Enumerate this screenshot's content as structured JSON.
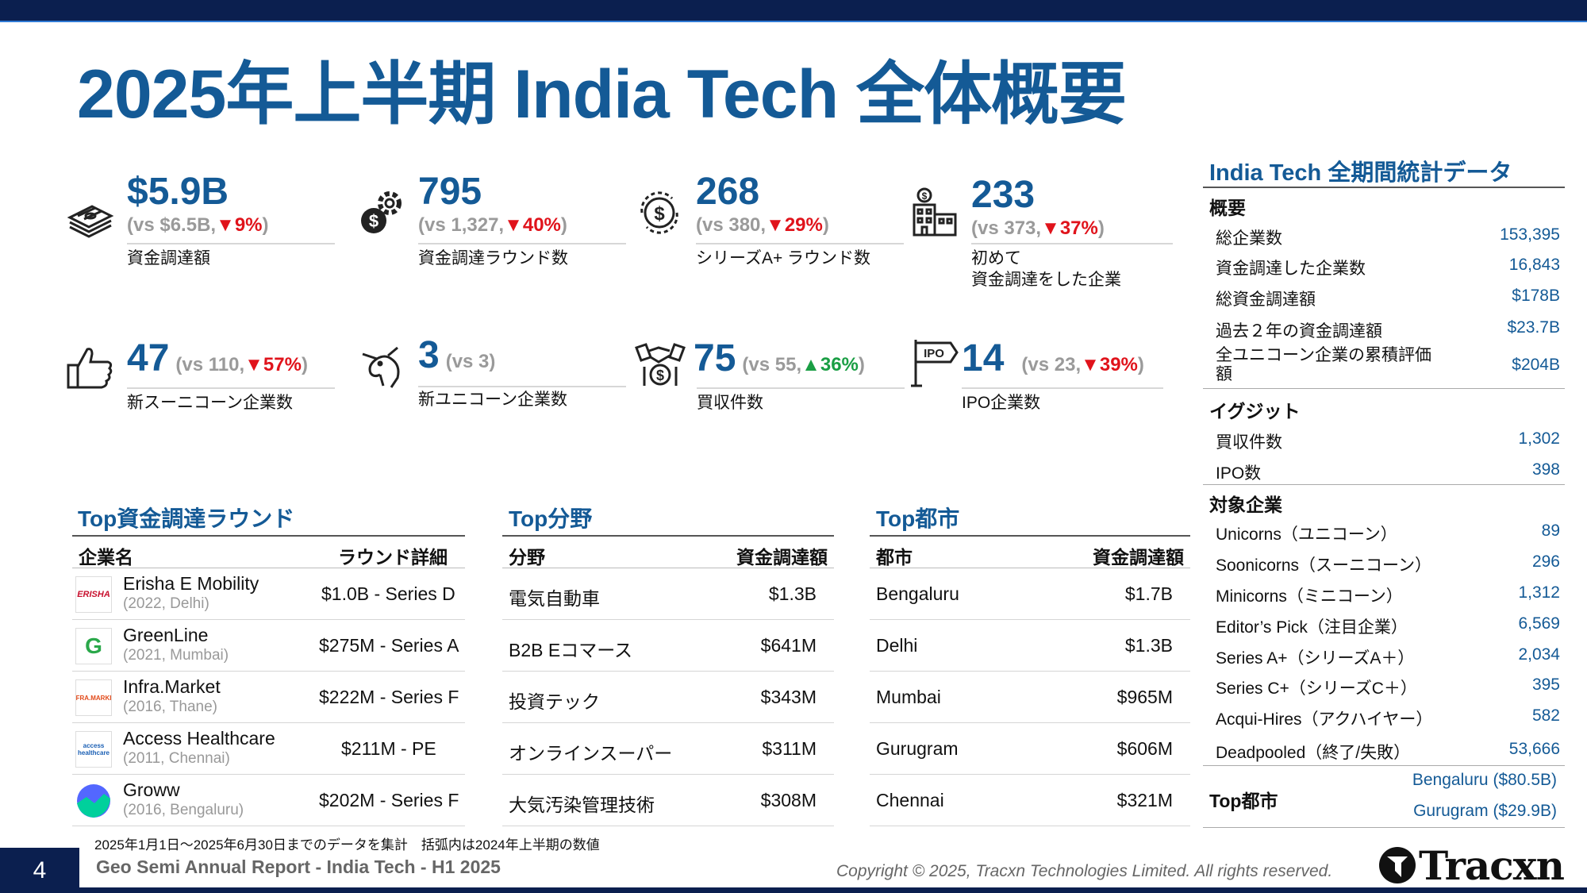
{
  "title": "2025年上半期 India Tech 全体概要",
  "kpis": [
    {
      "value": "$5.9B",
      "vs": "(vs $6.5B,",
      "change": "▼9%",
      "close": ")",
      "direction": "down",
      "label1": "資金調達額",
      "label2": "",
      "icon": "money-stack-icon"
    },
    {
      "value": "795",
      "vs": "(vs 1,327,",
      "change": "▼40%",
      "close": ")",
      "direction": "down",
      "label1": "資金調達ラウンド数",
      "label2": "",
      "icon": "gear-dollar-icon"
    },
    {
      "value": "268",
      "vs": "(vs 380,",
      "change": "▼29%",
      "close": ")",
      "direction": "down",
      "label1": "シリーズA+ ラウンド数",
      "label2": "",
      "icon": "dollar-cycle-icon"
    },
    {
      "value": "233",
      "vs": "(vs 373,",
      "change": "▼37%",
      "close": ")",
      "direction": "down",
      "label1": "初めて",
      "label2": "資金調達をした企業",
      "icon": "building-dollar-icon"
    },
    {
      "value": "47",
      "vs": "(vs 110,",
      "change": "▼57%",
      "close": ")",
      "direction": "down",
      "label1": "新スーニコーン企業数",
      "label2": "",
      "icon": "thumbs-up-icon"
    },
    {
      "value": "3",
      "vs": "(vs 3)",
      "change": "",
      "close": "",
      "direction": "none",
      "label1": "新ユニコーン企業数",
      "label2": "",
      "icon": "unicorn-icon"
    },
    {
      "value": "75",
      "vs": "(vs 55,",
      "change": "▲36%",
      "close": ")",
      "direction": "up",
      "label1": "買収件数",
      "label2": "",
      "icon": "handshake-dollar-icon"
    },
    {
      "value": "14",
      "vs": "(vs 23,",
      "change": "▼39%",
      "close": ")",
      "direction": "down",
      "label1": "IPO企業数",
      "label2": "",
      "icon": "ipo-sign-icon"
    }
  ],
  "top_rounds": {
    "title": "Top資金調達ラウンド",
    "headers": [
      "企業名",
      "ラウンド詳細"
    ],
    "rows": [
      {
        "name": "Erisha E Mobility",
        "sub": "(2022, Delhi)",
        "round": "$1.0B - Series D",
        "logo": "ERISHA"
      },
      {
        "name": "GreenLine",
        "sub": "(2021, Mumbai)",
        "round": "$275M - Series A",
        "logo": "G"
      },
      {
        "name": "Infra.Market",
        "sub": "(2016, Thane)",
        "round": "$222M - Series F",
        "logo": "INFRA.MARKET"
      },
      {
        "name": "Access Healthcare",
        "sub": "(2011, Chennai)",
        "round": "$211M - PE",
        "logo": "access healthcare"
      },
      {
        "name": "Groww",
        "sub": "(2016, Bengaluru)",
        "round": "$202M - Series F",
        "logo": ""
      }
    ]
  },
  "top_sectors": {
    "title": "Top分野",
    "headers": [
      "分野",
      "資金調達額"
    ],
    "rows": [
      {
        "name": "電気自動車",
        "value": "$1.3B"
      },
      {
        "name": "B2B Eコマース",
        "value": "$641M"
      },
      {
        "name": "投資テック",
        "value": "$343M"
      },
      {
        "name": "オンラインスーパー",
        "value": "$311M"
      },
      {
        "name": "大気汚染管理技術",
        "value": "$308M"
      }
    ]
  },
  "top_cities": {
    "title": "Top都市",
    "headers": [
      "都市",
      "資金調達額"
    ],
    "rows": [
      {
        "name": "Bengaluru",
        "value": "$1.7B"
      },
      {
        "name": "Delhi",
        "value": "$1.3B"
      },
      {
        "name": "Mumbai",
        "value": "$965M"
      },
      {
        "name": "Gurugram",
        "value": "$606M"
      },
      {
        "name": "Chennai",
        "value": "$321M"
      }
    ]
  },
  "stats": {
    "title": "India Tech 全期間統計データ",
    "overview_label": "概要",
    "overview": [
      {
        "k": "総企業数",
        "v": "153,395"
      },
      {
        "k": "資金調達した企業数",
        "v": "16,843"
      },
      {
        "k": "総資金調達額",
        "v": "$178B"
      },
      {
        "k": "過去２年の資金調達額",
        "v": "$23.7B"
      },
      {
        "k": "全ユニコーン企業の累積評価",
        "k2": "額",
        "v": "$204B"
      }
    ],
    "exit_label": "イグジット",
    "exits": [
      {
        "k": "買収件数",
        "v": "1,302"
      },
      {
        "k": "IPO数",
        "v": "398"
      }
    ],
    "companies_label": "対象企業",
    "companies": [
      {
        "k": "Unicorns（ユニコーン）",
        "v": "89"
      },
      {
        "k": "Soonicorns（スーニコーン）",
        "v": "296"
      },
      {
        "k": "Minicorns（ミニコーン）",
        "v": "1,312"
      },
      {
        "k": "Editor’s Pick（注目企業）",
        "v": "6,569"
      },
      {
        "k": "Series A+（シリーズA＋）",
        "v": "2,034"
      },
      {
        "k": "Series C+（シリーズC＋）",
        "v": "395"
      },
      {
        "k": "Acqui-Hires（アクハイヤー）",
        "v": "582"
      },
      {
        "k": "Deadpooled（終了/失敗）",
        "v": "53,666"
      }
    ],
    "top_cities_label": "Top都市",
    "top_cities": [
      "Bengaluru ($80.5B)",
      "Gurugram ($29.9B)"
    ]
  },
  "footer": {
    "note": "2025年1月1日～2025年6月30日までのデータを集計　括弧内は2024年上半期の数値",
    "page": "4",
    "report": "Geo Semi Annual Report - India Tech - H1 2025",
    "copyright": "Copyright © 2025, Tracxn Technologies Limited. All rights reserved.",
    "brand": "Tracxn"
  },
  "colors": {
    "brand_blue": "#145a96",
    "navy": "#0b1f4f",
    "down": "#e0131b",
    "up": "#1a9e44"
  }
}
